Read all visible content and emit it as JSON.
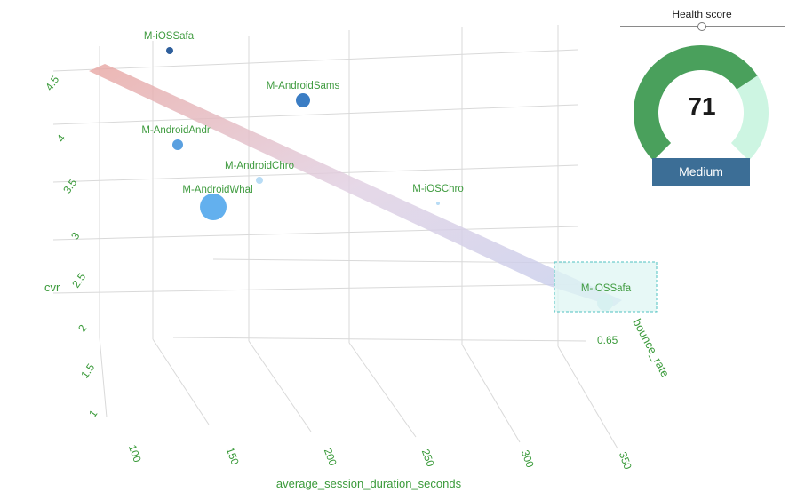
{
  "chart_data": {
    "type": "scatter",
    "subtype": "3d-bubble-with-regression-plane",
    "x_axis": {
      "title": "average_session_duration_seconds",
      "ticks": [
        "100",
        "150",
        "200",
        "250",
        "300",
        "350"
      ]
    },
    "y_axis": {
      "title": "bounce_rate",
      "ticks": [
        "0.65"
      ]
    },
    "z_axis": {
      "title": "cvr",
      "ticks": [
        "1",
        "1.5",
        "2",
        "2.5",
        "3",
        "3.5",
        "4",
        "4.5"
      ]
    },
    "grid": true,
    "points": [
      {
        "label": "M-iOSSafa",
        "cvr": 4.6,
        "size": "small",
        "color": "#2e5f9c"
      },
      {
        "label": "M-AndroidSams",
        "cvr": 4.0,
        "size": "medium",
        "color": "#3b7dc4"
      },
      {
        "label": "M-AndroidAndr",
        "cvr": 3.7,
        "size": "small",
        "color": "#5aa0e0"
      },
      {
        "label": "M-AndroidChro",
        "cvr": 3.3,
        "size": "tiny",
        "color": "#b8dcf5"
      },
      {
        "label": "M-AndroidWhal",
        "cvr": 3.1,
        "size": "large",
        "color": "#63b0ee"
      },
      {
        "label": "M-iOSChro",
        "cvr": 3.0,
        "size": "tiny",
        "color": "#b8dcf5"
      },
      {
        "label": "M-iOSSafa",
        "cvr": 2.0,
        "size": "medium",
        "color": "#d7f1f1"
      }
    ]
  },
  "health": {
    "title": "Health score",
    "score": "71",
    "score_value": 71,
    "level": "Medium",
    "colors": {
      "filled": "#4aa05c",
      "remaining": "#cdf5e2",
      "badge": "#3c6e96"
    }
  }
}
